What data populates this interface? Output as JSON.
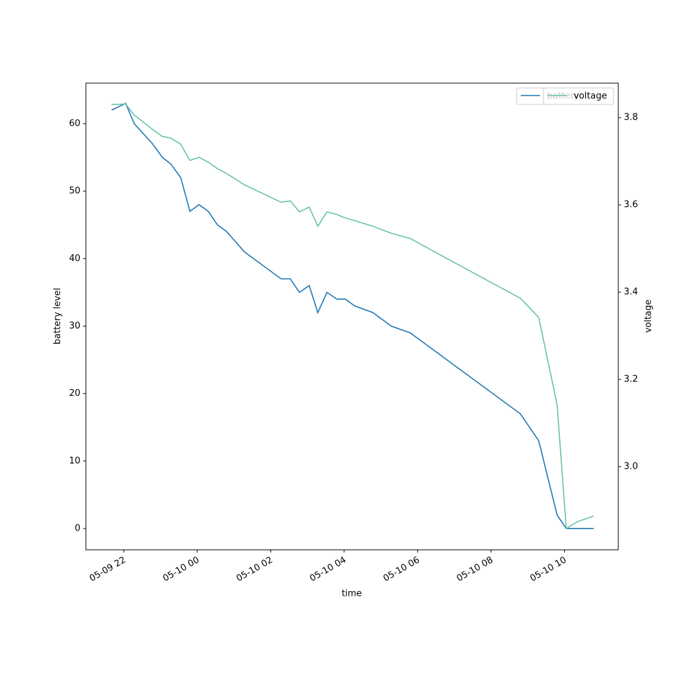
{
  "chart_data": {
    "type": "line",
    "x_label": "time",
    "y_label": "battery level",
    "y2_label": "voltage",
    "x": [
      "05-09 21:40",
      "05-09 22:03",
      "05-09 22:17",
      "05-09 22:47",
      "05-09 23:03",
      "05-09 23:17",
      "05-09 23:33",
      "05-09 23:48",
      "05-10 00:03",
      "05-10 00:18",
      "05-10 00:33",
      "05-10 00:48",
      "05-10 01:17",
      "05-10 02:17",
      "05-10 02:32",
      "05-10 02:47",
      "05-10 03:03",
      "05-10 03:17",
      "05-10 03:32",
      "05-10 03:48",
      "05-10 04:02",
      "05-10 04:17",
      "05-10 04:47",
      "05-10 05:17",
      "05-10 05:48",
      "05-10 06:48",
      "05-10 08:48",
      "05-10 09:18",
      "05-10 09:48",
      "05-10 10:03",
      "05-10 10:20",
      "05-10 10:48"
    ],
    "series": [
      {
        "name": "battery",
        "color": "#1f77b4",
        "axis": "y",
        "values": [
          62,
          63,
          60,
          57,
          55,
          54,
          52,
          47,
          48,
          47,
          45,
          44,
          41,
          37,
          37,
          35,
          36,
          32,
          35,
          34,
          34,
          33,
          32,
          30,
          29,
          25,
          17,
          13,
          2,
          0,
          0,
          0
        ]
      },
      {
        "name": "voltage",
        "color": "#66c2a5",
        "axis": "y2",
        "values": [
          3.83,
          3.831,
          3.806,
          3.773,
          3.757,
          3.753,
          3.739,
          3.702,
          3.709,
          3.698,
          3.683,
          3.672,
          3.646,
          3.606,
          3.609,
          3.584,
          3.595,
          3.551,
          3.584,
          3.578,
          3.57,
          3.564,
          3.551,
          3.535,
          3.523,
          3.477,
          3.386,
          3.342,
          3.142,
          2.858,
          2.873,
          2.887
        ]
      }
    ],
    "xlim": [
      "05-09 20:58",
      "05-10 11:28"
    ],
    "xticks": [
      {
        "value": "05-09 22:00",
        "label": "05-09 22"
      },
      {
        "value": "05-10 00:00",
        "label": "05-10 00"
      },
      {
        "value": "05-10 02:00",
        "label": "05-10 02"
      },
      {
        "value": "05-10 04:00",
        "label": "05-10 04"
      },
      {
        "value": "05-10 06:00",
        "label": "05-10 06"
      },
      {
        "value": "05-10 08:00",
        "label": "05-10 08"
      },
      {
        "value": "05-10 10:00",
        "label": "05-10 10"
      }
    ],
    "ylim": [
      -3.15,
      66.0
    ],
    "yticks": [
      0,
      10,
      20,
      30,
      40,
      50,
      60
    ],
    "y2lim": [
      2.8094,
      3.879
    ],
    "y2ticks": [
      {
        "value": 3.0,
        "label": "3.0"
      },
      {
        "value": 3.2,
        "label": "3.2"
      },
      {
        "value": 3.4,
        "label": "3.4"
      },
      {
        "value": 3.6,
        "label": "3.6"
      },
      {
        "value": 3.8,
        "label": "3.8"
      }
    ],
    "legend": "upper right",
    "grid": false
  }
}
